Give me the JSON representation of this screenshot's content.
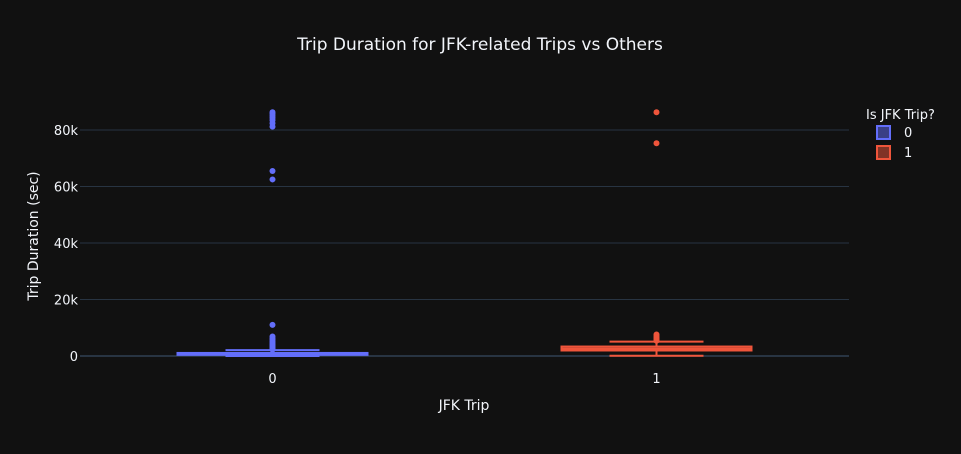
{
  "chart_data": {
    "type": "box",
    "title": "Trip Duration for JFK-related Trips vs Others",
    "xlabel": "JFK Trip",
    "ylabel": "Trip Duration (sec)",
    "ylim": [
      -2500,
      93000
    ],
    "yticks": [
      0,
      20000,
      40000,
      60000,
      80000
    ],
    "ytick_labels": [
      "0",
      "20k",
      "40k",
      "60k",
      "80k"
    ],
    "categories": [
      "0",
      "1"
    ],
    "grid": true,
    "legend": {
      "title": "Is JFK Trip?",
      "position": "top-right"
    },
    "series": [
      {
        "name": "0",
        "category": "0",
        "color": "#636efa",
        "min": 1,
        "q1": 400,
        "median": 660,
        "q3": 1080,
        "max": 2100,
        "outliers": [
          2300,
          2600,
          3000,
          3400,
          3800,
          4200,
          4700,
          5200,
          5800,
          6300,
          6900,
          11000,
          62500,
          65500,
          81200,
          82400,
          83500,
          84300,
          85000,
          85700,
          86300
        ]
      },
      {
        "name": "1",
        "category": "1",
        "color": "#ef553b",
        "min": 80,
        "q1": 1950,
        "median": 2550,
        "q3": 3350,
        "max": 5100,
        "outliers": [
          5400,
          5800,
          6200,
          6600,
          7100,
          7600,
          75300,
          86300
        ]
      }
    ]
  },
  "colors": {
    "background": "#111111",
    "grid": "#283442",
    "zeroline": "#283442",
    "text": "#f2f5fa"
  }
}
